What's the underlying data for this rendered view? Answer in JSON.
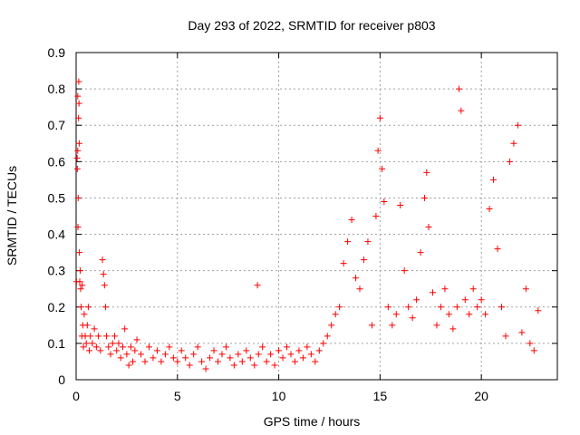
{
  "chart_data": {
    "type": "scatter",
    "title": "Day 293 of 2022, SRMTID for receiver p803",
    "xlabel": "GPS time / hours",
    "ylabel": "SRMTID / TECUs",
    "xlim": [
      0,
      23.75
    ],
    "ylim": [
      0,
      0.9
    ],
    "x_ticks": [
      0,
      5,
      10,
      15,
      20
    ],
    "x_tick_labels": [
      "0",
      "5",
      "10",
      "15",
      "20"
    ],
    "y_ticks": [
      0,
      0.1,
      0.2,
      0.3,
      0.4,
      0.5,
      0.6,
      0.7,
      0.8,
      0.9
    ],
    "y_tick_labels": [
      "0",
      "0.1",
      "0.2",
      "0.3",
      "0.4",
      "0.5",
      "0.6",
      "0.7",
      "0.8",
      "0.9"
    ],
    "grid": true,
    "marker": "+",
    "color": "#ff0000",
    "series": [
      {
        "name": "SRMTID",
        "points": [
          [
            0.02,
            0.27
          ],
          [
            0.05,
            0.61
          ],
          [
            0.06,
            0.58
          ],
          [
            0.08,
            0.63
          ],
          [
            0.08,
            0.78
          ],
          [
            0.09,
            0.42
          ],
          [
            0.1,
            0.5
          ],
          [
            0.12,
            0.72
          ],
          [
            0.13,
            0.82
          ],
          [
            0.14,
            0.76
          ],
          [
            0.15,
            0.65
          ],
          [
            0.16,
            0.35
          ],
          [
            0.18,
            0.27
          ],
          [
            0.2,
            0.3
          ],
          [
            0.22,
            0.25
          ],
          [
            0.25,
            0.2
          ],
          [
            0.28,
            0.12
          ],
          [
            0.3,
            0.26
          ],
          [
            0.33,
            0.15
          ],
          [
            0.36,
            0.09
          ],
          [
            0.4,
            0.18
          ],
          [
            0.45,
            0.12
          ],
          [
            0.5,
            0.1
          ],
          [
            0.55,
            0.15
          ],
          [
            0.6,
            0.2
          ],
          [
            0.65,
            0.08
          ],
          [
            0.7,
            0.12
          ],
          [
            0.8,
            0.1
          ],
          [
            0.9,
            0.14
          ],
          [
            1.0,
            0.09
          ],
          [
            1.1,
            0.12
          ],
          [
            1.2,
            0.08
          ],
          [
            1.3,
            0.33
          ],
          [
            1.35,
            0.29
          ],
          [
            1.4,
            0.26
          ],
          [
            1.45,
            0.2
          ],
          [
            1.5,
            0.12
          ],
          [
            1.6,
            0.09
          ],
          [
            1.7,
            0.07
          ],
          [
            1.8,
            0.1
          ],
          [
            1.9,
            0.12
          ],
          [
            2.0,
            0.08
          ],
          [
            2.1,
            0.1
          ],
          [
            2.2,
            0.06
          ],
          [
            2.3,
            0.09
          ],
          [
            2.4,
            0.14
          ],
          [
            2.5,
            0.07
          ],
          [
            2.6,
            0.04
          ],
          [
            2.7,
            0.09
          ],
          [
            2.8,
            0.05
          ],
          [
            2.9,
            0.08
          ],
          [
            3.0,
            0.11
          ],
          [
            3.2,
            0.07
          ],
          [
            3.4,
            0.05
          ],
          [
            3.6,
            0.09
          ],
          [
            3.8,
            0.06
          ],
          [
            4.0,
            0.08
          ],
          [
            4.2,
            0.05
          ],
          [
            4.4,
            0.07
          ],
          [
            4.6,
            0.09
          ],
          [
            4.8,
            0.06
          ],
          [
            5.0,
            0.05
          ],
          [
            5.2,
            0.08
          ],
          [
            5.4,
            0.06
          ],
          [
            5.6,
            0.04
          ],
          [
            5.8,
            0.07
          ],
          [
            6.0,
            0.09
          ],
          [
            6.2,
            0.05
          ],
          [
            6.4,
            0.03
          ],
          [
            6.6,
            0.06
          ],
          [
            6.8,
            0.08
          ],
          [
            7.0,
            0.05
          ],
          [
            7.2,
            0.07
          ],
          [
            7.4,
            0.09
          ],
          [
            7.6,
            0.06
          ],
          [
            7.8,
            0.04
          ],
          [
            8.0,
            0.07
          ],
          [
            8.2,
            0.05
          ],
          [
            8.4,
            0.08
          ],
          [
            8.6,
            0.06
          ],
          [
            8.8,
            0.04
          ],
          [
            8.95,
            0.26
          ],
          [
            9.0,
            0.07
          ],
          [
            9.2,
            0.09
          ],
          [
            9.4,
            0.05
          ],
          [
            9.6,
            0.07
          ],
          [
            9.8,
            0.04
          ],
          [
            10.0,
            0.08
          ],
          [
            10.2,
            0.06
          ],
          [
            10.4,
            0.09
          ],
          [
            10.6,
            0.07
          ],
          [
            10.8,
            0.05
          ],
          [
            11.0,
            0.08
          ],
          [
            11.2,
            0.06
          ],
          [
            11.4,
            0.09
          ],
          [
            11.6,
            0.07
          ],
          [
            11.8,
            0.05
          ],
          [
            12.0,
            0.08
          ],
          [
            12.2,
            0.1
          ],
          [
            12.4,
            0.12
          ],
          [
            12.6,
            0.15
          ],
          [
            12.8,
            0.18
          ],
          [
            13.0,
            0.2
          ],
          [
            13.2,
            0.32
          ],
          [
            13.4,
            0.38
          ],
          [
            13.6,
            0.44
          ],
          [
            13.8,
            0.28
          ],
          [
            14.0,
            0.25
          ],
          [
            14.2,
            0.33
          ],
          [
            14.4,
            0.38
          ],
          [
            14.6,
            0.15
          ],
          [
            14.8,
            0.45
          ],
          [
            14.9,
            0.63
          ],
          [
            15.0,
            0.72
          ],
          [
            15.1,
            0.58
          ],
          [
            15.2,
            0.49
          ],
          [
            15.4,
            0.2
          ],
          [
            15.6,
            0.15
          ],
          [
            15.8,
            0.18
          ],
          [
            16.0,
            0.48
          ],
          [
            16.2,
            0.3
          ],
          [
            16.4,
            0.2
          ],
          [
            16.6,
            0.17
          ],
          [
            16.8,
            0.22
          ],
          [
            17.0,
            0.35
          ],
          [
            17.2,
            0.5
          ],
          [
            17.3,
            0.57
          ],
          [
            17.4,
            0.42
          ],
          [
            17.6,
            0.24
          ],
          [
            17.8,
            0.15
          ],
          [
            18.0,
            0.2
          ],
          [
            18.2,
            0.25
          ],
          [
            18.4,
            0.18
          ],
          [
            18.6,
            0.14
          ],
          [
            18.8,
            0.2
          ],
          [
            18.9,
            0.8
          ],
          [
            19.0,
            0.74
          ],
          [
            19.2,
            0.22
          ],
          [
            19.4,
            0.18
          ],
          [
            19.6,
            0.25
          ],
          [
            19.8,
            0.2
          ],
          [
            20.0,
            0.22
          ],
          [
            20.2,
            0.18
          ],
          [
            20.4,
            0.47
          ],
          [
            20.6,
            0.55
          ],
          [
            20.8,
            0.36
          ],
          [
            21.0,
            0.2
          ],
          [
            21.2,
            0.12
          ],
          [
            21.4,
            0.6
          ],
          [
            21.6,
            0.65
          ],
          [
            21.8,
            0.7
          ],
          [
            22.0,
            0.13
          ],
          [
            22.2,
            0.25
          ],
          [
            22.4,
            0.1
          ],
          [
            22.6,
            0.08
          ],
          [
            22.8,
            0.19
          ]
        ]
      }
    ]
  }
}
